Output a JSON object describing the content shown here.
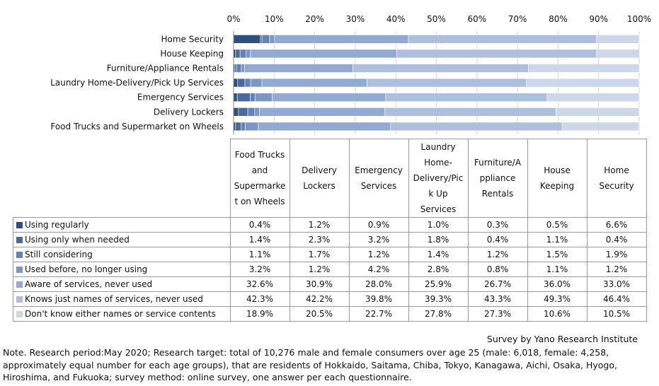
{
  "chart_data": {
    "type": "bar",
    "orientation": "horizontal",
    "stacked": "percent",
    "x_ticks": [
      "0%",
      "10%",
      "20%",
      "30%",
      "40%",
      "50%",
      "60%",
      "70%",
      "80%",
      "90%",
      "100%"
    ],
    "xlim": [
      0,
      100
    ],
    "categories": [
      "Home Security",
      "House Keeping",
      "Furniture/Appliance Rentals",
      "Laundry Home-Delivery/Pick Up Services",
      "Emergency Services",
      "Delivery Lockers",
      "Food Trucks and Supermarket on Wheels"
    ],
    "series": [
      {
        "name": "Using regularly",
        "color": "#2f4f7f",
        "values": [
          6.6,
          0.5,
          0.3,
          1.0,
          0.9,
          1.2,
          0.4
        ]
      },
      {
        "name": "Using only when needed",
        "color": "#4a6a9c",
        "values": [
          0.4,
          1.1,
          0.4,
          1.8,
          3.2,
          2.3,
          1.4
        ]
      },
      {
        "name": "Still considering",
        "color": "#6582b3",
        "values": [
          1.9,
          1.5,
          1.2,
          1.4,
          1.2,
          1.7,
          1.1
        ]
      },
      {
        "name": "Used before, no longer using",
        "color": "#7c97c4",
        "values": [
          1.2,
          1.1,
          0.8,
          2.8,
          4.2,
          1.2,
          3.2
        ]
      },
      {
        "name": "Aware of services, never used",
        "color": "#92a9d1",
        "values": [
          33.0,
          36.0,
          26.7,
          25.9,
          28.0,
          30.9,
          32.6
        ]
      },
      {
        "name": "Knows just names of services, never used",
        "color": "#aebedd",
        "values": [
          46.4,
          49.3,
          43.3,
          39.3,
          39.8,
          42.2,
          42.3
        ]
      },
      {
        "name": "Don't know either names or service contents",
        "color": "#cdd7ea",
        "values": [
          10.5,
          10.6,
          27.3,
          27.8,
          22.7,
          20.5,
          18.9
        ]
      }
    ],
    "legend": "table-left"
  },
  "table": {
    "columns": [
      [
        "Food Trucks",
        "and",
        "Supermarke",
        "t on Wheels"
      ],
      [
        "Delivery",
        "Lockers"
      ],
      [
        "Emergency",
        "Services"
      ],
      [
        "Laundry",
        "Home-",
        "Delivery/Pic",
        "k Up",
        "Services"
      ],
      [
        "Furniture/A",
        "ppliance",
        "Rentals"
      ],
      [
        "House",
        "Keeping"
      ],
      [
        "Home",
        "Security"
      ]
    ],
    "rows": [
      [
        "0.4%",
        "1.2%",
        "0.9%",
        "1.0%",
        "0.3%",
        "0.5%",
        "6.6%"
      ],
      [
        "1.4%",
        "2.3%",
        "3.2%",
        "1.8%",
        "0.4%",
        "1.1%",
        "0.4%"
      ],
      [
        "1.1%",
        "1.7%",
        "1.2%",
        "1.4%",
        "1.2%",
        "1.5%",
        "1.9%"
      ],
      [
        "3.2%",
        "1.2%",
        "4.2%",
        "2.8%",
        "0.8%",
        "1.1%",
        "1.2%"
      ],
      [
        "32.6%",
        "30.9%",
        "28.0%",
        "25.9%",
        "26.7%",
        "36.0%",
        "33.0%"
      ],
      [
        "42.3%",
        "42.2%",
        "39.8%",
        "39.3%",
        "43.3%",
        "49.3%",
        "46.4%"
      ],
      [
        "18.9%",
        "20.5%",
        "22.7%",
        "27.8%",
        "27.3%",
        "10.6%",
        "10.5%"
      ]
    ]
  },
  "source": "Survey by Yano Research Institute",
  "note": "Note. Research period:May 2020; Research target: total of 10,276 male and female consumers over age 25 (male: 6,018, female: 4,258, approximately equal number for each age groups), that are residents of Hokkaido, Saitama, Chiba, Tokyo, Kanagawa, Aichi, Osaka, Hyogo, Hiroshima, and Fukuoka; survey method: online survey, one answer per each questionnaire."
}
